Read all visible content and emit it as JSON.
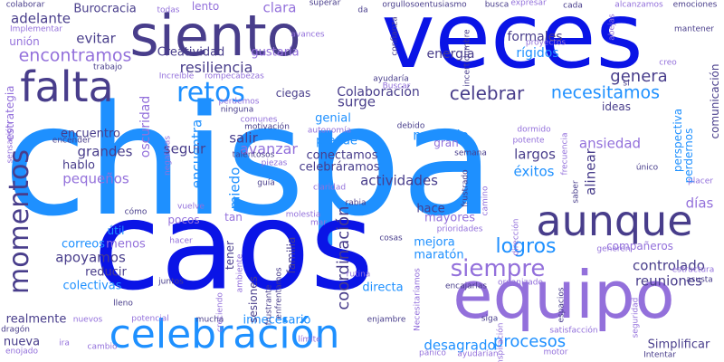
{
  "palette": {
    "royal_blue": "#0a14e6",
    "sky_blue": "#1e90ff",
    "navy": "#483d8b",
    "lavender": "#9370db"
  },
  "words": [
    {
      "text": "chispa",
      "color": "#1e90ff"
    },
    {
      "text": "caos",
      "color": "#0a14e6"
    },
    {
      "text": "veces",
      "color": "#0a14e6"
    },
    {
      "text": "siento",
      "color": "#483d8b"
    },
    {
      "text": "equipo",
      "color": "#9370db"
    },
    {
      "text": "celebración",
      "color": "#1e90ff"
    },
    {
      "text": "aunque",
      "color": "#483d8b"
    },
    {
      "text": "momentos",
      "color": "#483d8b"
    },
    {
      "text": "falta",
      "color": "#483d8b"
    },
    {
      "text": "retos",
      "color": "#1e90ff"
    },
    {
      "text": "siempre",
      "color": "#9370db"
    },
    {
      "text": "necesitamos",
      "color": "#1e90ff"
    },
    {
      "text": "celebrar",
      "color": "#483d8b"
    },
    {
      "text": "encontramos",
      "color": "#9370db"
    },
    {
      "text": "resiliencia",
      "color": "#483d8b"
    },
    {
      "text": "genera",
      "color": "#483d8b"
    },
    {
      "text": "coordinación",
      "color": "#483d8b"
    },
    {
      "text": "logros",
      "color": "#1e90ff"
    },
    {
      "text": "procesos",
      "color": "#1e90ff"
    },
    {
      "text": "controlado",
      "color": "#483d8b"
    },
    {
      "text": "reuniones",
      "color": "#483d8b"
    },
    {
      "text": "desagrado",
      "color": "#1e90ff"
    },
    {
      "text": "actividades",
      "color": "#483d8b"
    },
    {
      "text": "pequeños",
      "color": "#9370db"
    },
    {
      "text": "apoyamos",
      "color": "#483d8b"
    },
    {
      "text": "clara",
      "color": "#9370db"
    },
    {
      "text": "evitar",
      "color": "#483d8b"
    },
    {
      "text": "adelante",
      "color": "#483d8b"
    },
    {
      "text": "Burocracia",
      "color": "#483d8b"
    },
    {
      "text": "Colaboración",
      "color": "#483d8b"
    },
    {
      "text": "ansiedad",
      "color": "#9370db"
    },
    {
      "text": "grandes",
      "color": "#483d8b"
    },
    {
      "text": "seguir",
      "color": "#483d8b"
    },
    {
      "text": "encuentra",
      "color": "#1e90ff"
    },
    {
      "text": "salir",
      "color": "#483d8b"
    },
    {
      "text": "avanzar",
      "color": "#9370db"
    },
    {
      "text": "miedo",
      "color": "#1e90ff"
    },
    {
      "text": "surge",
      "color": "#483d8b"
    },
    {
      "text": "menudo",
      "color": "#1e90ff"
    },
    {
      "text": "largos",
      "color": "#483d8b"
    },
    {
      "text": "éxitos",
      "color": "#1e90ff"
    },
    {
      "text": "alinear",
      "color": "#483d8b"
    },
    {
      "text": "días",
      "color": "#9370db"
    },
    {
      "text": "formales",
      "color": "#483d8b"
    },
    {
      "text": "rígidos",
      "color": "#1e90ff"
    },
    {
      "text": "energía",
      "color": "#483d8b"
    },
    {
      "text": "Creatividad",
      "color": "#483d8b"
    },
    {
      "text": "gustaría",
      "color": "#9370db"
    },
    {
      "text": "hablo",
      "color": "#483d8b"
    },
    {
      "text": "encuentro",
      "color": "#483d8b"
    },
    {
      "text": "conectamos",
      "color": "#483d8b"
    },
    {
      "text": "celebráramos",
      "color": "#483d8b"
    },
    {
      "text": "prende",
      "color": "#1e90ff"
    },
    {
      "text": "genial",
      "color": "#1e90ff"
    },
    {
      "text": "hace",
      "color": "#483d8b"
    },
    {
      "text": "mayores",
      "color": "#9370db"
    },
    {
      "text": "mejora",
      "color": "#1e90ff"
    },
    {
      "text": "maratón",
      "color": "#1e90ff"
    },
    {
      "text": "directa",
      "color": "#1e90ff"
    },
    {
      "text": "menos",
      "color": "#9370db"
    },
    {
      "text": "correos",
      "color": "#1e90ff"
    },
    {
      "text": "reducir",
      "color": "#483d8b"
    },
    {
      "text": "colectivas",
      "color": "#1e90ff"
    },
    {
      "text": "realmente",
      "color": "#483d8b"
    },
    {
      "text": "nueva",
      "color": "#483d8b"
    },
    {
      "text": "innecesario",
      "color": "#1e90ff"
    },
    {
      "text": "Simplificar",
      "color": "#483d8b"
    },
    {
      "text": "compañeros",
      "color": "#9370db"
    },
    {
      "text": "ideas",
      "color": "#483d8b"
    },
    {
      "text": "oscuridad",
      "color": "#9370db"
    },
    {
      "text": "estrategia",
      "color": "#9370db"
    },
    {
      "text": "unión",
      "color": "#9370db"
    },
    {
      "text": "comunicación",
      "color": "#483d8b"
    },
    {
      "text": "perspectiva",
      "color": "#1e90ff"
    },
    {
      "text": "perdernos",
      "color": "#1e90ff"
    },
    {
      "text": "familia",
      "color": "#483d8b"
    },
    {
      "text": "sesiones",
      "color": "#483d8b"
    },
    {
      "text": "tener",
      "color": "#483d8b"
    },
    {
      "text": "útil",
      "color": "#1e90ff"
    },
    {
      "text": "pocos",
      "color": "#9370db"
    },
    {
      "text": "tan",
      "color": "#9370db"
    },
    {
      "text": "gran",
      "color": "#9370db"
    },
    {
      "text": "ciegas",
      "color": "#483d8b"
    },
    {
      "text": "lento",
      "color": "#9370db"
    },
    {
      "text": "colaborar",
      "color": "#483d8b"
    },
    {
      "text": "Implementar",
      "color": "#9370db"
    },
    {
      "text": "todas",
      "color": "#9370db"
    },
    {
      "text": "superar",
      "color": "#483d8b"
    },
    {
      "text": "orgullosoentusiasmo",
      "color": "#483d8b"
    },
    {
      "text": "busca",
      "color": "#483d8b"
    },
    {
      "text": "expresar",
      "color": "#9370db"
    },
    {
      "text": "cada",
      "color": "#483d8b"
    },
    {
      "text": "alcanzamos",
      "color": "#9370db"
    },
    {
      "text": "emociones",
      "color": "#483d8b"
    },
    {
      "text": "mantener",
      "color": "#483d8b"
    },
    {
      "text": "avances",
      "color": "#9370db"
    },
    {
      "text": "confianza",
      "color": "#483d8b"
    },
    {
      "text": "incertidumbre",
      "color": "#483d8b"
    },
    {
      "text": "proyectos",
      "color": "#9370db"
    },
    {
      "text": "abejas",
      "color": "#9370db"
    },
    {
      "text": "trabajo",
      "color": "#483d8b"
    },
    {
      "text": "Increíble",
      "color": "#9370db"
    },
    {
      "text": "rompecabezas",
      "color": "#9370db"
    },
    {
      "text": "ayudaría",
      "color": "#483d8b"
    },
    {
      "text": "Buscar",
      "color": "#9370db"
    },
    {
      "text": "si",
      "color": "#483d8b"
    },
    {
      "text": "creo",
      "color": "#9370db"
    },
    {
      "text": "ninguna",
      "color": "#483d8b"
    },
    {
      "text": "perdemos",
      "color": "#9370db"
    },
    {
      "text": "comunes",
      "color": "#9370db"
    },
    {
      "text": "motivación",
      "color": "#483d8b"
    },
    {
      "text": "autonomía",
      "color": "#9370db"
    },
    {
      "text": "debido",
      "color": "#483d8b"
    },
    {
      "text": "dormido",
      "color": "#9370db"
    },
    {
      "text": "potente",
      "color": "#9370db"
    },
    {
      "text": "sensación",
      "color": "#9370db"
    },
    {
      "text": "encender",
      "color": "#483d8b"
    },
    {
      "text": "negativas",
      "color": "#9370db"
    },
    {
      "text": "talentosos",
      "color": "#483d8b"
    },
    {
      "text": "piezas",
      "color": "#9370db"
    },
    {
      "text": "guía",
      "color": "#483d8b"
    },
    {
      "text": "claridad",
      "color": "#9370db"
    },
    {
      "text": "semana",
      "color": "#483d8b"
    },
    {
      "text": "frustrado",
      "color": "#483d8b"
    },
    {
      "text": "camino",
      "color": "#9370db"
    },
    {
      "text": "frecuencia",
      "color": "#9370db"
    },
    {
      "text": "saber",
      "color": "#483d8b"
    },
    {
      "text": "único",
      "color": "#483d8b"
    },
    {
      "text": "placer",
      "color": "#9370db"
    },
    {
      "text": "cómo",
      "color": "#483d8b"
    },
    {
      "text": "vuelve",
      "color": "#9370db"
    },
    {
      "text": "molestia",
      "color": "#9370db"
    },
    {
      "text": "rabia",
      "color": "#483d8b"
    },
    {
      "text": "mar",
      "color": "#9370db"
    },
    {
      "text": "prioridades",
      "color": "#9370db"
    },
    {
      "text": "hacer",
      "color": "#9370db"
    },
    {
      "text": "cosas",
      "color": "#483d8b"
    },
    {
      "text": "dirección",
      "color": "#9370db"
    },
    {
      "text": "generen",
      "color": "#9370db"
    },
    {
      "text": "estructura",
      "color": "#9370db"
    },
    {
      "text": "asusta",
      "color": "#483d8b"
    },
    {
      "text": "juntos",
      "color": "#483d8b"
    },
    {
      "text": "ambiente",
      "color": "#9370db"
    },
    {
      "text": "enfrentamos",
      "color": "#483d8b"
    },
    {
      "text": "frustrante",
      "color": "#483d8b"
    },
    {
      "text": "rutina",
      "color": "#9370db"
    },
    {
      "text": "Necesitaríamos",
      "color": "#9370db"
    },
    {
      "text": "encajarlas",
      "color": "#483d8b"
    },
    {
      "text": "organizado",
      "color": "#9370db"
    },
    {
      "text": "espacios",
      "color": "#483d8b"
    },
    {
      "text": "seguridad",
      "color": "#9370db"
    },
    {
      "text": "lleno",
      "color": "#483d8b"
    },
    {
      "text": "creciendo",
      "color": "#9370db"
    },
    {
      "text": "nuevos",
      "color": "#9370db"
    },
    {
      "text": "potencial",
      "color": "#9370db"
    },
    {
      "text": "mucha",
      "color": "#483d8b"
    },
    {
      "text": "enjambre",
      "color": "#483d8b"
    },
    {
      "text": "siga",
      "color": "#483d8b"
    },
    {
      "text": "satisfacción",
      "color": "#9370db"
    },
    {
      "text": "inspiración",
      "color": "#9370db"
    },
    {
      "text": "dragón",
      "color": "#483d8b"
    },
    {
      "text": "ira",
      "color": "#9370db"
    },
    {
      "text": "cambio",
      "color": "#9370db"
    },
    {
      "text": "enojado",
      "color": "#9370db"
    },
    {
      "text": "límite",
      "color": "#9370db"
    },
    {
      "text": "pánico",
      "color": "#9370db"
    },
    {
      "text": "ayudarían",
      "color": "#9370db"
    },
    {
      "text": "motor",
      "color": "#9370db"
    },
    {
      "text": "Intentar",
      "color": "#483d8b"
    },
    {
      "text": "da",
      "color": "#483d8b"
    }
  ]
}
